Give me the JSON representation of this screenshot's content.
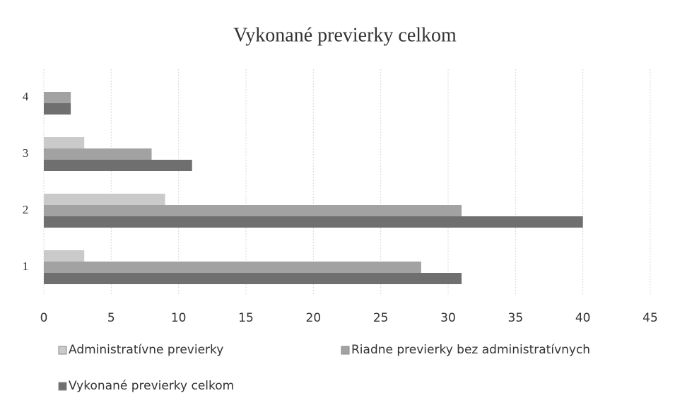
{
  "chart_data": {
    "type": "hbar",
    "title": "Vykonané previerky celkom",
    "categories": [
      "1",
      "2",
      "3",
      "4"
    ],
    "series": [
      {
        "name": "Administratívne previerky",
        "color": "#cacaca",
        "values": [
          3,
          9,
          3,
          0
        ]
      },
      {
        "name": "Riadne previerky bez administratívnych",
        "color": "#a2a2a2",
        "values": [
          28,
          31,
          8,
          2
        ]
      },
      {
        "name": "Vykonané previerky celkom",
        "color": "#6f6f6f",
        "values": [
          31,
          40,
          11,
          2
        ]
      }
    ],
    "xlim": [
      0,
      45
    ],
    "xticks": [
      0,
      5,
      10,
      15,
      20,
      25,
      30,
      35,
      40,
      45
    ],
    "grid": true,
    "legend": "bottom"
  }
}
